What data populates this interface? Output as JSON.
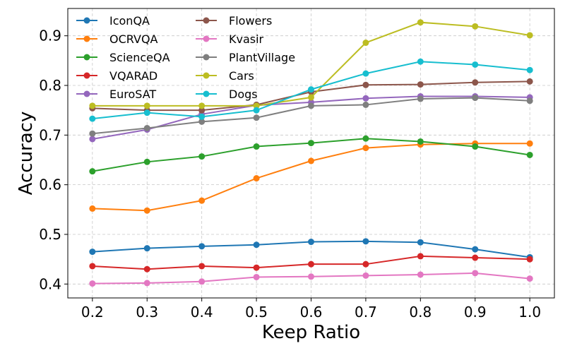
{
  "chart_data": {
    "type": "line",
    "title": "",
    "xlabel": "Keep Ratio",
    "ylabel": "Accuracy",
    "x": [
      0.2,
      0.3,
      0.4,
      0.5,
      0.6,
      0.7,
      0.8,
      0.9,
      1.0
    ],
    "x_tick_labels": [
      "0.2",
      "0.3",
      "0.4",
      "0.5",
      "0.6",
      "0.7",
      "0.8",
      "0.9",
      "1.0"
    ],
    "y_ticks": [
      0.4,
      0.5,
      0.6,
      0.7,
      0.8,
      0.9
    ],
    "y_tick_labels": [
      "0.4",
      "0.5",
      "0.6",
      "0.7",
      "0.8",
      "0.9"
    ],
    "xlim": [
      0.155,
      1.045
    ],
    "ylim": [
      0.372,
      0.955
    ],
    "grid": true,
    "legend_position": "top-left",
    "legend_columns": 2,
    "series": [
      {
        "name": "IconQA",
        "color": "#1f77b4",
        "values": [
          0.465,
          0.472,
          0.476,
          0.479,
          0.485,
          0.486,
          0.484,
          0.47,
          0.454
        ]
      },
      {
        "name": "OCRVQA",
        "color": "#ff7f0e",
        "values": [
          0.552,
          0.548,
          0.568,
          0.613,
          0.648,
          0.674,
          0.681,
          0.683,
          0.683
        ]
      },
      {
        "name": "ScienceQA",
        "color": "#2ca02c",
        "values": [
          0.627,
          0.646,
          0.657,
          0.677,
          0.684,
          0.693,
          0.687,
          0.677,
          0.66
        ]
      },
      {
        "name": "VQARAD",
        "color": "#d62728",
        "values": [
          0.436,
          0.43,
          0.436,
          0.433,
          0.44,
          0.44,
          0.456,
          0.453,
          0.45
        ]
      },
      {
        "name": "EuroSAT",
        "color": "#9467bd",
        "values": [
          0.692,
          0.711,
          0.742,
          0.76,
          0.766,
          0.774,
          0.778,
          0.778,
          0.776
        ]
      },
      {
        "name": "Flowers",
        "color": "#8c564b",
        "values": [
          0.754,
          0.75,
          0.75,
          0.761,
          0.787,
          0.801,
          0.802,
          0.806,
          0.808
        ]
      },
      {
        "name": "Kvasir",
        "color": "#e377c2",
        "values": [
          0.401,
          0.402,
          0.405,
          0.414,
          0.415,
          0.417,
          0.419,
          0.422,
          0.411
        ]
      },
      {
        "name": "PlantVillage",
        "color": "#7f7f7f",
        "values": [
          0.703,
          0.714,
          0.727,
          0.735,
          0.759,
          0.761,
          0.773,
          0.775,
          0.769
        ]
      },
      {
        "name": "Cars",
        "color": "#bcbd22",
        "values": [
          0.759,
          0.759,
          0.759,
          0.759,
          0.776,
          0.886,
          0.927,
          0.919,
          0.901
        ]
      },
      {
        "name": "Dogs",
        "color": "#17becf",
        "values": [
          0.733,
          0.745,
          0.737,
          0.75,
          0.792,
          0.824,
          0.848,
          0.842,
          0.831
        ]
      }
    ]
  }
}
